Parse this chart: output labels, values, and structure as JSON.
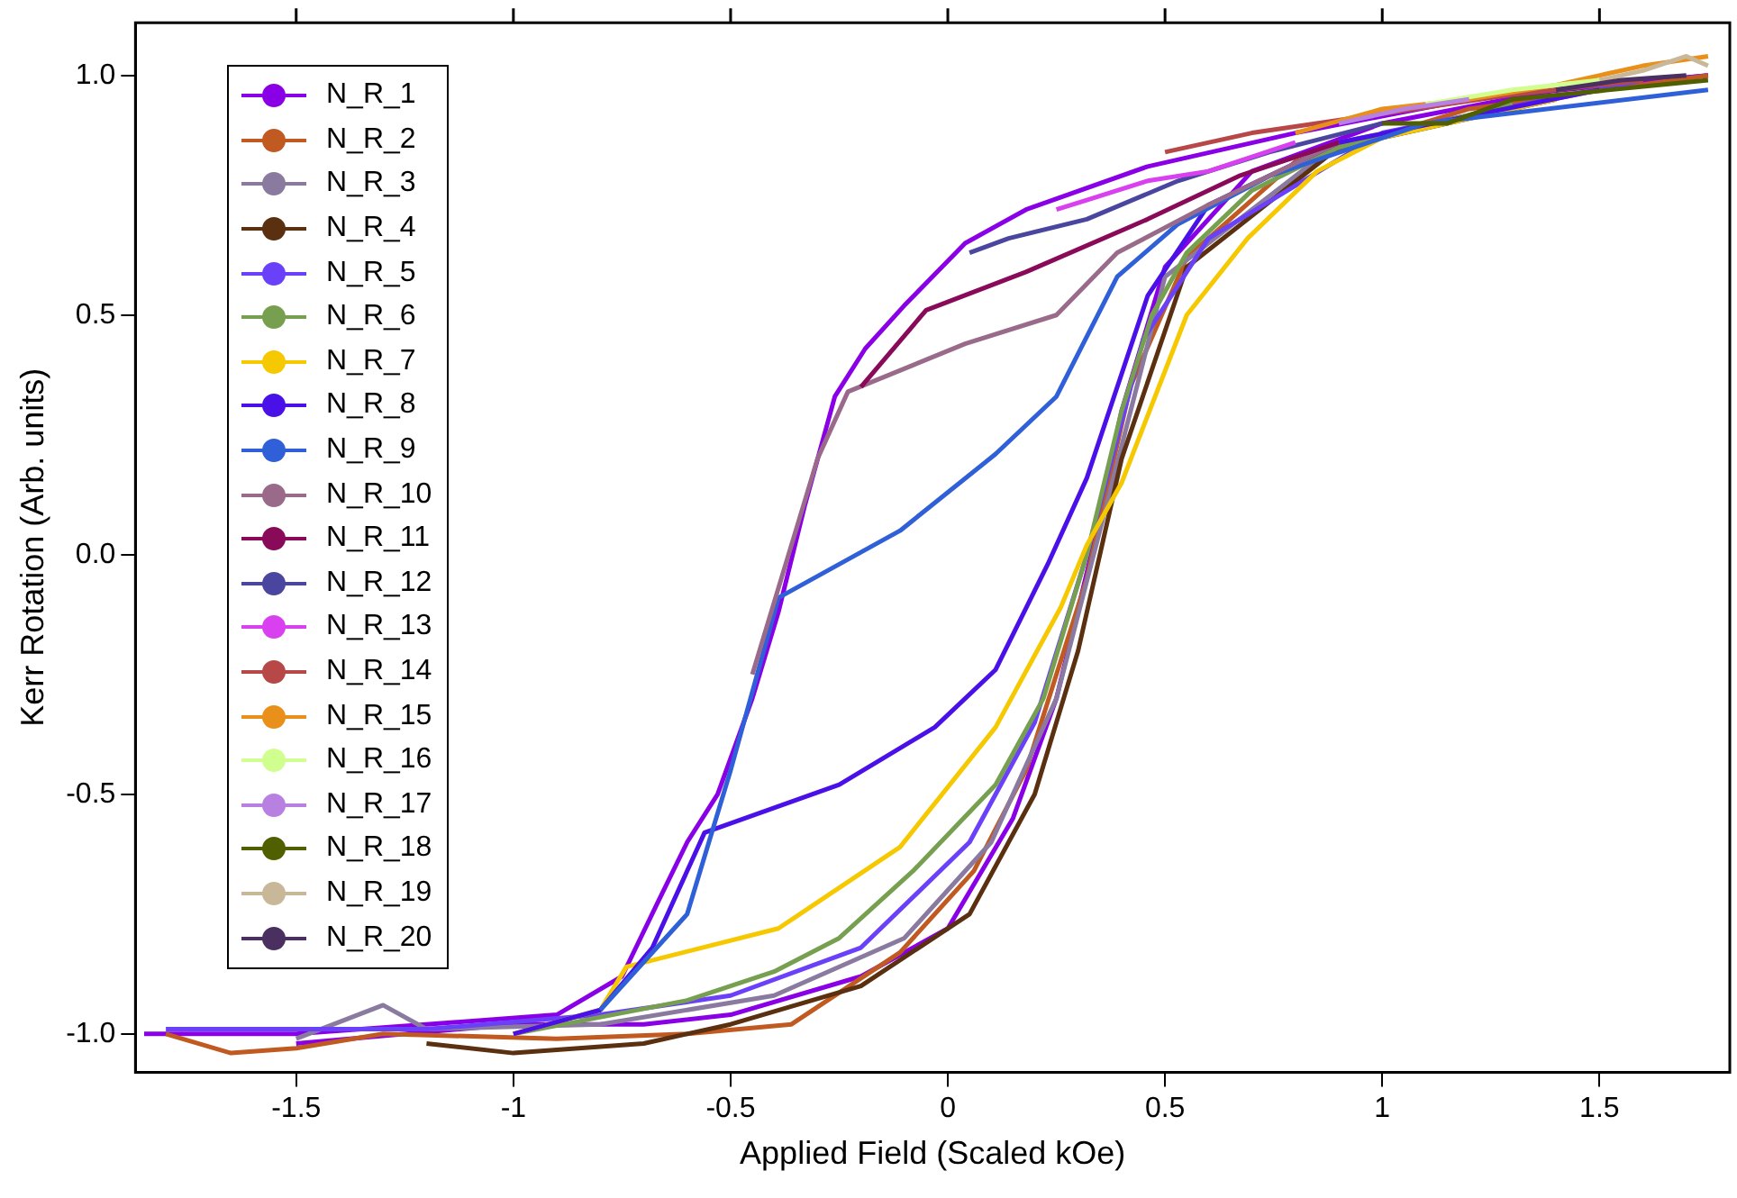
{
  "chart_data": {
    "type": "line",
    "xlabel": "Applied Field (Scaled kOe)",
    "ylabel": "Kerr Rotation (Arb. units)",
    "xlim": [
      -1.87,
      1.8
    ],
    "ylim": [
      -1.08,
      1.11
    ],
    "xticks": [
      -1.5,
      -1.0,
      -0.5,
      0.0,
      0.5,
      1.0,
      1.5
    ],
    "yticks": [
      {
        "value": -1.0,
        "label": "-1.0"
      },
      {
        "value": -0.5,
        "label": "-0.5"
      },
      {
        "value": 0.0,
        "label": "0.0"
      },
      {
        "value": 0.5,
        "label": "0.5"
      },
      {
        "value": 1.0,
        "label": "1.0"
      }
    ],
    "grid": false,
    "legend": "top left",
    "marker": "none",
    "line_style": "solid",
    "series": [
      {
        "name": "N_R_1",
        "color": "#8a00e6",
        "x": [
          -1.85,
          -1.5,
          -1.2,
          -0.9,
          -0.75,
          -0.67,
          -0.6,
          -0.53,
          -0.45,
          -0.39,
          -0.33,
          -0.26,
          -0.19,
          -0.1,
          0.04,
          0.18,
          0.46,
          0.8,
          1.2,
          1.75
        ],
        "values": [
          -1.0,
          -1.0,
          -0.98,
          -0.96,
          -0.88,
          -0.73,
          -0.6,
          -0.5,
          -0.3,
          -0.12,
          0.1,
          0.33,
          0.43,
          0.52,
          0.65,
          0.72,
          0.81,
          0.88,
          0.95,
          1.0
        ]
      },
      {
        "color": "#8a00e6",
        "x": [
          -1.5,
          -1.0,
          -0.7,
          -0.5,
          -0.2,
          0.0,
          0.15,
          0.25,
          0.33,
          0.4,
          0.5,
          0.7,
          1.0,
          1.4,
          1.75
        ],
        "values": [
          -1.02,
          -0.98,
          -0.98,
          -0.96,
          -0.88,
          -0.78,
          -0.55,
          -0.3,
          0.0,
          0.3,
          0.6,
          0.8,
          0.9,
          0.97,
          1.0
        ]
      },
      {
        "name": "N_R_2",
        "color": "#c05a20",
        "x": [
          -1.8,
          -1.65,
          -1.5,
          -1.3,
          -0.9,
          -0.6,
          -0.36,
          -0.11,
          0.06,
          0.18,
          0.32,
          0.42,
          0.55,
          0.8,
          1.2,
          1.75
        ],
        "values": [
          -1.0,
          -1.04,
          -1.03,
          -1.0,
          -1.01,
          -1.0,
          -0.98,
          -0.83,
          -0.66,
          -0.45,
          -0.05,
          0.35,
          0.62,
          0.82,
          0.93,
          1.0
        ]
      },
      {
        "name": "N_R_3",
        "color": "#8a7aa0",
        "x": [
          -1.5,
          -1.3,
          -1.2,
          -0.8,
          -0.4,
          -0.1,
          0.1,
          0.25,
          0.35,
          0.5,
          0.9,
          1.5
        ],
        "values": [
          -1.01,
          -0.94,
          -0.99,
          -0.98,
          -0.92,
          -0.8,
          -0.6,
          -0.3,
          0.05,
          0.58,
          0.86,
          0.97
        ]
      },
      {
        "name": "N_R_4",
        "color": "#5a3010",
        "x": [
          -1.2,
          -1.0,
          -0.7,
          -0.5,
          -0.2,
          0.05,
          0.2,
          0.3,
          0.4,
          0.55,
          0.9,
          1.4
        ],
        "values": [
          -1.02,
          -1.04,
          -1.02,
          -0.98,
          -0.9,
          -0.75,
          -0.5,
          -0.2,
          0.2,
          0.6,
          0.85,
          0.95
        ]
      },
      {
        "name": "N_R_5",
        "color": "#6a40f8",
        "x": [
          -1.8,
          -1.2,
          -0.8,
          -0.5,
          -0.2,
          0.05,
          0.2,
          0.32,
          0.45,
          0.6,
          1.0,
          1.6
        ],
        "values": [
          -0.99,
          -0.99,
          -0.96,
          -0.92,
          -0.82,
          -0.6,
          -0.35,
          0.0,
          0.45,
          0.66,
          0.88,
          0.99
        ]
      },
      {
        "name": "N_R_6",
        "color": "#76a050",
        "x": [
          -1.0,
          -0.6,
          -0.4,
          -0.25,
          -0.08,
          0.11,
          0.22,
          0.32,
          0.4,
          0.47,
          0.55,
          0.7,
          0.9,
          1.3
        ],
        "values": [
          -1.0,
          -0.93,
          -0.87,
          -0.8,
          -0.66,
          -0.48,
          -0.3,
          0.0,
          0.3,
          0.5,
          0.63,
          0.76,
          0.85,
          0.94
        ]
      },
      {
        "name": "N_R_7",
        "color": "#f5c800",
        "x": [
          -1.0,
          -0.8,
          -0.74,
          -0.39,
          -0.11,
          0.11,
          0.26,
          0.32,
          0.4,
          0.46,
          0.55,
          0.69,
          0.85,
          1.0,
          1.4
        ],
        "values": [
          -1.0,
          -0.95,
          -0.86,
          -0.78,
          -0.61,
          -0.36,
          -0.11,
          0.02,
          0.15,
          0.29,
          0.5,
          0.66,
          0.8,
          0.87,
          0.95
        ]
      },
      {
        "name": "N_R_8",
        "color": "#4a10e8",
        "x": [
          -1.0,
          -0.8,
          -0.68,
          -0.56,
          -0.25,
          -0.03,
          0.11,
          0.23,
          0.32,
          0.46,
          0.6,
          0.9,
          1.5
        ],
        "values": [
          -1.0,
          -0.95,
          -0.82,
          -0.58,
          -0.48,
          -0.36,
          -0.24,
          -0.02,
          0.16,
          0.54,
          0.73,
          0.86,
          0.97
        ]
      },
      {
        "name": "N_R_9",
        "color": "#3060d8",
        "x": [
          -0.8,
          -0.6,
          -0.5,
          -0.39,
          -0.11,
          0.11,
          0.25,
          0.39,
          0.53,
          0.74,
          1.1,
          1.75
        ],
        "values": [
          -0.95,
          -0.75,
          -0.45,
          -0.09,
          0.05,
          0.21,
          0.33,
          0.58,
          0.69,
          0.79,
          0.9,
          0.97
        ]
      },
      {
        "name": "N_R_10",
        "color": "#9a6a8a",
        "x": [
          -0.45,
          -0.3,
          -0.23,
          0.04,
          0.25,
          0.39,
          0.6,
          0.9
        ],
        "values": [
          -0.25,
          0.2,
          0.34,
          0.44,
          0.5,
          0.63,
          0.73,
          0.86
        ]
      },
      {
        "name": "N_R_11",
        "color": "#8a0a5a",
        "x": [
          -0.2,
          -0.05,
          0.18,
          0.46,
          0.67,
          0.9
        ],
        "values": [
          0.35,
          0.51,
          0.59,
          0.7,
          0.79,
          0.86
        ]
      },
      {
        "name": "N_R_12",
        "color": "#4a46a0",
        "x": [
          0.05,
          0.14,
          0.32,
          0.53,
          0.74,
          1.0
        ],
        "values": [
          0.63,
          0.66,
          0.7,
          0.78,
          0.84,
          0.9
        ]
      },
      {
        "name": "N_R_13",
        "color": "#d840f0",
        "x": [
          0.25,
          0.32,
          0.46,
          0.6,
          0.8
        ],
        "values": [
          0.72,
          0.74,
          0.78,
          0.8,
          0.86
        ]
      },
      {
        "name": "N_R_14",
        "color": "#b84848",
        "x": [
          0.5,
          0.7,
          1.0,
          1.3,
          1.6
        ],
        "values": [
          0.84,
          0.88,
          0.92,
          0.96,
          0.99
        ]
      },
      {
        "name": "N_R_15",
        "color": "#e8901a",
        "x": [
          0.8,
          1.0,
          1.2,
          1.4,
          1.6,
          1.75
        ],
        "values": [
          0.88,
          0.93,
          0.95,
          0.98,
          1.02,
          1.04
        ]
      },
      {
        "name": "N_R_16",
        "color": "#d0ff90",
        "x": [
          1.1,
          1.3,
          1.5
        ],
        "values": [
          0.94,
          0.97,
          0.99
        ]
      },
      {
        "name": "N_R_17",
        "color": "#b880e0",
        "x": [
          0.9,
          1.05,
          1.2
        ],
        "values": [
          0.9,
          0.93,
          0.95
        ]
      },
      {
        "name": "N_R_18",
        "color": "#506000",
        "x": [
          1.0,
          1.15,
          1.3,
          1.75
        ],
        "values": [
          0.9,
          0.9,
          0.95,
          0.99
        ]
      },
      {
        "name": "N_R_19",
        "color": "#c8b898",
        "x": [
          1.5,
          1.6,
          1.7,
          1.75
        ],
        "values": [
          0.99,
          1.01,
          1.04,
          1.02
        ]
      },
      {
        "name": "N_R_20",
        "color": "#4a3060",
        "x": [
          1.4,
          1.55,
          1.7
        ],
        "values": [
          0.97,
          0.99,
          1.0
        ]
      }
    ]
  }
}
